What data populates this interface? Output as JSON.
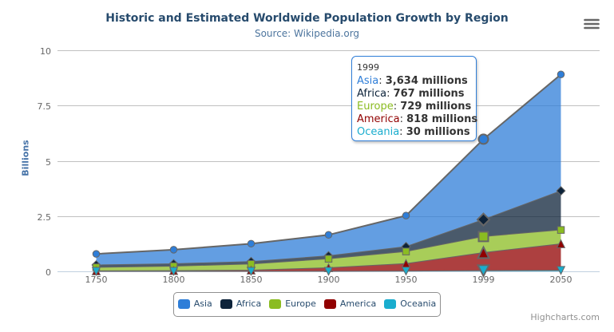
{
  "chart_data": {
    "type": "area",
    "stacking": "normal",
    "title": "Historic and Estimated Worldwide Population Growth by Region",
    "subtitle": "Source: Wikipedia.org",
    "categories": [
      "1750",
      "1800",
      "1850",
      "1900",
      "1950",
      "1999",
      "2050"
    ],
    "series": [
      {
        "name": "Asia",
        "color": "#2f7ed8",
        "marker": "circle",
        "values": [
          502,
          635,
          809,
          947,
          1402,
          3634,
          5268
        ]
      },
      {
        "name": "Africa",
        "color": "#0d233a",
        "marker": "diamond",
        "values": [
          106,
          107,
          111,
          133,
          221,
          767,
          1766
        ]
      },
      {
        "name": "Europe",
        "color": "#8bbc21",
        "marker": "square",
        "values": [
          163,
          203,
          276,
          408,
          547,
          729,
          628
        ]
      },
      {
        "name": "America",
        "color": "#910000",
        "marker": "triangle",
        "values": [
          18,
          31,
          54,
          156,
          339,
          818,
          1201
        ]
      },
      {
        "name": "Oceania",
        "color": "#1aadce",
        "marker": "triangle-down",
        "values": [
          2,
          2,
          2,
          6,
          13,
          30,
          46
        ]
      }
    ],
    "values_unit": "millions",
    "ylabel": "Billions",
    "yticks": [
      "0",
      "2.5",
      "5",
      "7.5",
      "10"
    ],
    "ylim": [
      0,
      10
    ],
    "grid": true,
    "legend_position": "bottom"
  },
  "tooltip": {
    "header": "1999",
    "point_index": 5,
    "value_suffix": " millions"
  },
  "hover": {
    "series": "Asia",
    "point_index": 5
  },
  "legend": {
    "items": [
      "Asia",
      "Africa",
      "Europe",
      "America",
      "Oceania"
    ]
  },
  "credits": {
    "text": "Highcharts.com"
  },
  "menu": {
    "icon": "hamburger-icon",
    "label": "Chart context menu"
  },
  "theme": {
    "title_color": "#274b6d",
    "subtitle_color": "#4d759e",
    "axis_title_color": "#4572a7",
    "axis_label_color": "#666666",
    "gridline_color": "#c0c0c0",
    "axis_line_color": "#c0d0e0",
    "series_line_color": "#666666",
    "legend_text_color": "#274b6d",
    "legend_border_color": "#909090",
    "tooltip_border_color": "#2f7ed8",
    "credits_color": "#909090",
    "fill_opacity": 0.75
  }
}
